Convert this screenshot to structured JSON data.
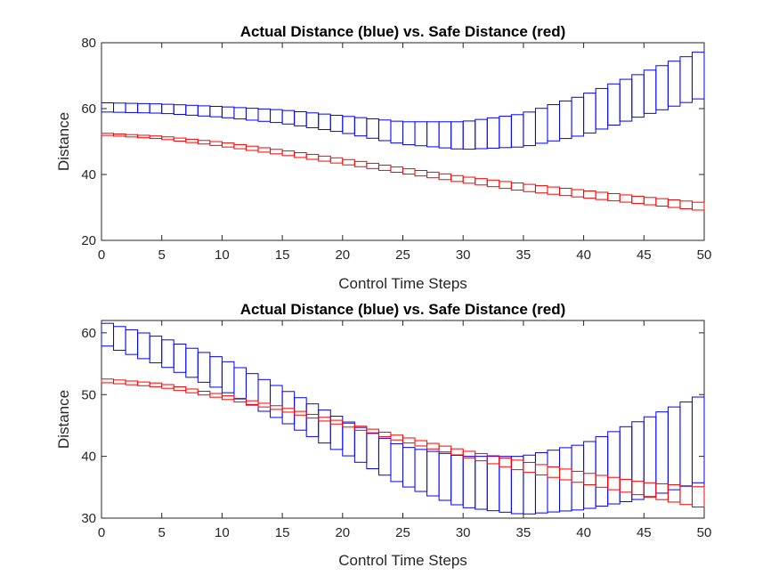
{
  "chart_data": [
    {
      "type": "line",
      "subtype": "interval-boxes",
      "title": "Actual Distance (blue) vs. Safe Distance (red)",
      "xlabel": "Control Time Steps",
      "ylabel": "Distance",
      "xlim": [
        0,
        50
      ],
      "ylim": [
        20,
        80
      ],
      "xticks": [
        0,
        5,
        10,
        15,
        20,
        25,
        30,
        35,
        40,
        45,
        50
      ],
      "yticks": [
        20,
        40,
        60,
        80
      ],
      "grid": false,
      "series": [
        {
          "color": "#0000ff",
          "description": "actual distance reachable interval (lower/upper bound per step)",
          "x": [
            0,
            5,
            10,
            15,
            20,
            25,
            30,
            35,
            40,
            45,
            50
          ],
          "lower": [
            59.0,
            58.6,
            57.4,
            55.6,
            52.8,
            49.2,
            47.6,
            48.4,
            52.0,
            58.0,
            63.5
          ],
          "upper": [
            61.8,
            61.4,
            60.6,
            59.6,
            57.8,
            56.0,
            56.0,
            58.4,
            64.0,
            71.0,
            77.8
          ]
        },
        {
          "color": "#ff0000",
          "description": "safe distance reachable interval (lower/upper bound per step)",
          "x": [
            0,
            5,
            10,
            15,
            20,
            25,
            30,
            35,
            40,
            45,
            50
          ],
          "lower": [
            52.0,
            50.8,
            48.6,
            46.0,
            43.2,
            40.4,
            37.6,
            35.0,
            33.0,
            31.0,
            29.0
          ],
          "upper": [
            52.6,
            51.6,
            49.8,
            47.4,
            44.8,
            42.0,
            39.4,
            37.2,
            35.2,
            33.2,
            31.4
          ]
        }
      ]
    },
    {
      "type": "line",
      "subtype": "interval-boxes",
      "title": "Actual Distance (blue) vs. Safe Distance (red)",
      "xlabel": "Control Time Steps",
      "ylabel": "Distance",
      "xlim": [
        0,
        50
      ],
      "ylim": [
        30,
        62
      ],
      "xticks": [
        0,
        5,
        10,
        15,
        20,
        25,
        30,
        35,
        40,
        45,
        50
      ],
      "yticks": [
        30,
        40,
        50,
        60
      ],
      "grid": false,
      "series": [
        {
          "color": "#0000ff",
          "description": "actual distance reachable interval (lower/upper bound per step)",
          "x": [
            0,
            5,
            10,
            15,
            20,
            25,
            30,
            35,
            40,
            45,
            50
          ],
          "lower": [
            58.2,
            54.8,
            50.8,
            45.8,
            40.6,
            35.4,
            31.8,
            30.6,
            31.4,
            33.2,
            36.0
          ],
          "upper": [
            61.8,
            59.2,
            55.8,
            51.0,
            46.0,
            41.6,
            40.0,
            40.0,
            42.0,
            46.0,
            50.0
          ]
        },
        {
          "color": "#ff0000",
          "description": "safe distance reachable interval (lower/upper bound per step)",
          "x": [
            0,
            5,
            10,
            15,
            20,
            25,
            30,
            35,
            40,
            45,
            50
          ],
          "lower": [
            52.0,
            51.2,
            49.4,
            47.4,
            45.0,
            42.4,
            40.0,
            37.6,
            35.6,
            33.6,
            31.6
          ],
          "upper": [
            52.6,
            51.8,
            50.0,
            48.0,
            45.6,
            43.2,
            41.0,
            39.2,
            37.4,
            35.8,
            35.0
          ]
        }
      ]
    }
  ]
}
